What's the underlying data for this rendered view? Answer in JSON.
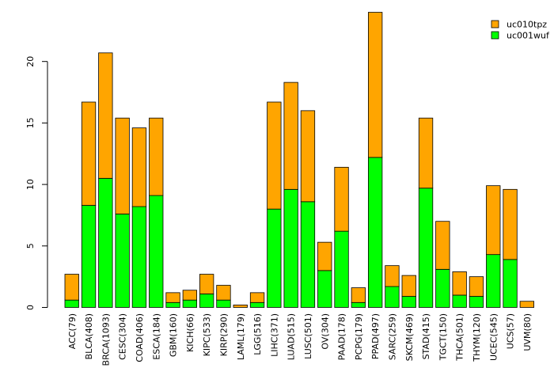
{
  "chart_data": {
    "type": "bar",
    "stacked": true,
    "title": "",
    "xlabel": "",
    "ylabel": "",
    "ylim": [
      0,
      24
    ],
    "yticks": [
      0,
      5,
      10,
      15,
      20
    ],
    "legend_position": "top-right",
    "categories": [
      "ACC(79)",
      "BLCA(408)",
      "BRCA(1093)",
      "CESC(304)",
      "COAD(406)",
      "ESCA(184)",
      "GBM(160)",
      "KICH(66)",
      "KIPC(533)",
      "KIRP(290)",
      "LAML(179)",
      "LGG(516)",
      "LIHC(371)",
      "LUAD(515)",
      "LUSC(501)",
      "OV(304)",
      "PAAD(178)",
      "PCPG(179)",
      "PPAD(497)",
      "SARC(259)",
      "SKCM(469)",
      "STAD(415)",
      "TGCT(150)",
      "THCA(501)",
      "THYM(120)",
      "UCEC(545)",
      "UCS(57)",
      "UVM(80)"
    ],
    "series": [
      {
        "name": "uc001wuf",
        "color": "#00ff00",
        "values": [
          0.6,
          8.3,
          10.5,
          7.6,
          8.2,
          9.1,
          0.4,
          0.6,
          1.1,
          0.6,
          0.0,
          0.4,
          8.0,
          9.6,
          8.6,
          3.0,
          6.2,
          0.4,
          12.2,
          1.7,
          0.9,
          9.7,
          3.1,
          1.0,
          0.9,
          4.3,
          3.9,
          0.0
        ]
      },
      {
        "name": "uc010tpz",
        "color": "#ffa500",
        "values": [
          2.1,
          8.4,
          10.2,
          7.8,
          6.4,
          6.3,
          0.8,
          0.8,
          1.6,
          1.2,
          0.2,
          0.8,
          8.7,
          8.7,
          7.4,
          2.3,
          5.2,
          1.2,
          11.8,
          1.7,
          1.7,
          5.7,
          3.9,
          1.9,
          1.6,
          5.6,
          5.7,
          0.5
        ]
      }
    ]
  }
}
